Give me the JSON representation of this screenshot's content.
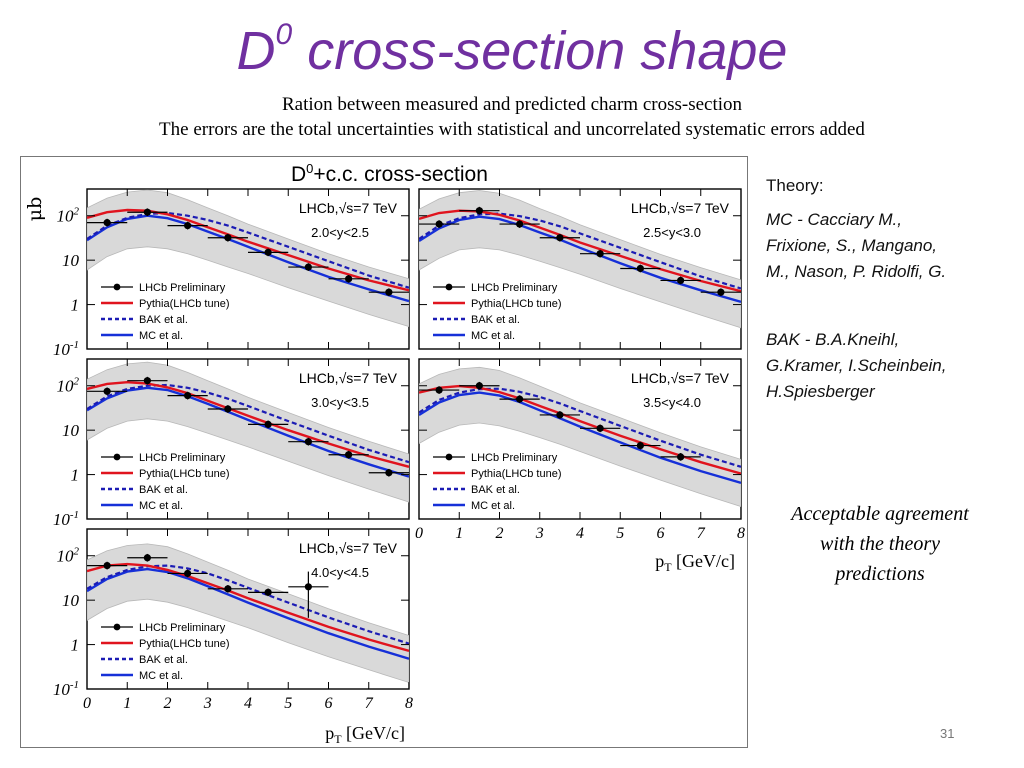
{
  "slide": {
    "title": "D",
    "title_sup": "0",
    "title_rest": " cross-section shape",
    "subtitle1": "Ration between measured and predicted charm cross-section",
    "subtitle2": "The errors are the total uncertainties with statistical and uncorrelated systematic errors added",
    "page_number": "31"
  },
  "theory": {
    "heading": "Theory:",
    "mc_lines": [
      "MC - Cacciary M.,",
      "Frixione, S., Mangano,",
      "M., Nason, P. Ridolfi, G."
    ],
    "bak_lines": [
      "BAK - B.A.Kneihl,",
      "G.Kramer, I.Scheinbein,",
      "H.Spiesberger"
    ],
    "conclusion_lines": [
      "Acceptable agreement",
      "with the theory",
      "predictions"
    ]
  },
  "colors": {
    "title": "#7030a0",
    "data": "#000000",
    "pythia": "#e0141e",
    "bak": "#1c1cb4",
    "mc": "#1630d8",
    "band": "#d9d9d9"
  },
  "chart_data": {
    "type": "line",
    "title": "D0+c.c. cross-section",
    "title_base": "D",
    "title_sup": "0",
    "title_rest": "+c.c. cross-section",
    "ylabel": "μb",
    "xlabel": "pT [GeV/c]",
    "xlabel_main": "p",
    "xlabel_sub": "T",
    "xlabel_rest": " [GeV/c]",
    "xlim": [
      0,
      8
    ],
    "ylim": [
      0.1,
      400
    ],
    "yscale": "log",
    "x_ticks": [
      "0",
      "1",
      "2",
      "3",
      "4",
      "5",
      "6",
      "7",
      "8"
    ],
    "y_ticks": [
      {
        "base": "10",
        "exp": "2",
        "value": 100
      },
      {
        "base": "10",
        "exp": "",
        "value": 10
      },
      {
        "base": "1",
        "exp": "",
        "value": 1
      },
      {
        "base": "10",
        "exp": "-1",
        "value": 0.1
      }
    ],
    "experiment_label": "LHCb,",
    "energy_label": "s=7 TeV",
    "legend_placement": "bottom-left",
    "legend": [
      "LHCb Preliminary",
      "Pythia(LHCb tune)",
      "BAK et al.",
      "MC et al."
    ],
    "panels": [
      {
        "rapidity": "2.0<y<2.5",
        "data": {
          "x": [
            0.5,
            1.5,
            2.5,
            3.5,
            4.5,
            5.5,
            6.5,
            7.5
          ],
          "y": [
            70,
            120,
            60,
            32,
            15,
            7,
            3.8,
            1.9
          ]
        },
        "pythia": {
          "x": [
            0,
            0.5,
            1,
            1.5,
            2,
            2.5,
            3,
            3.5,
            4,
            5,
            6,
            7,
            8
          ],
          "y": [
            90,
            120,
            135,
            130,
            108,
            80,
            55,
            38,
            26,
            13,
            6.5,
            3.5,
            2.1
          ]
        },
        "bak": {
          "x": [
            0,
            0.5,
            1,
            1.5,
            2,
            2.5,
            3,
            3.5,
            4,
            5,
            6,
            7,
            8
          ],
          "y": [
            30,
            60,
            90,
            110,
            115,
            100,
            80,
            60,
            42,
            20,
            9.5,
            4.5,
            2.4
          ]
        },
        "mc": {
          "x": [
            0,
            0.5,
            1,
            1.5,
            2,
            2.5,
            3,
            3.5,
            4,
            5,
            6,
            7,
            8
          ],
          "y": [
            28,
            55,
            85,
            100,
            88,
            65,
            44,
            30,
            20,
            9,
            4.2,
            2.2,
            1.2
          ]
        },
        "band_upper": {
          "x": [
            0,
            0.5,
            1,
            1.5,
            2,
            2.5,
            3,
            3.5,
            4,
            5,
            6,
            7,
            8
          ],
          "y": [
            150,
            250,
            340,
            380,
            330,
            230,
            150,
            100,
            65,
            30,
            14,
            7,
            3.8
          ]
        },
        "band_lower": {
          "x": [
            0,
            0.5,
            1,
            1.5,
            2,
            2.5,
            3,
            3.5,
            4,
            5,
            6,
            7,
            8
          ],
          "y": [
            6,
            12,
            18,
            20,
            18,
            14,
            10,
            7,
            5,
            2.4,
            1.2,
            0.6,
            0.32
          ]
        }
      },
      {
        "rapidity": "2.5<y<3.0",
        "data": {
          "x": [
            0.5,
            1.5,
            2.5,
            3.5,
            4.5,
            5.5,
            6.5,
            7.5
          ],
          "y": [
            65,
            130,
            65,
            32,
            14,
            6.5,
            3.5,
            1.9
          ]
        },
        "pythia": {
          "x": [
            0,
            0.5,
            1,
            1.5,
            2,
            2.5,
            3,
            3.5,
            4,
            5,
            6,
            7,
            8
          ],
          "y": [
            85,
            115,
            130,
            125,
            105,
            78,
            54,
            37,
            25,
            12.5,
            6.3,
            3.4,
            2.0
          ]
        },
        "bak": {
          "x": [
            0,
            0.5,
            1,
            1.5,
            2,
            2.5,
            3,
            3.5,
            4,
            5,
            6,
            7,
            8
          ],
          "y": [
            30,
            60,
            88,
            108,
            112,
            98,
            78,
            58,
            40,
            19,
            9,
            4.3,
            2.3
          ]
        },
        "mc": {
          "x": [
            0,
            0.5,
            1,
            1.5,
            2,
            2.5,
            3,
            3.5,
            4,
            5,
            6,
            7,
            8
          ],
          "y": [
            27,
            52,
            80,
            95,
            84,
            62,
            42,
            29,
            19,
            8.5,
            4.0,
            2.1,
            1.15
          ]
        },
        "band_upper": {
          "x": [
            0,
            0.5,
            1,
            1.5,
            2,
            2.5,
            3,
            3.5,
            4,
            5,
            6,
            7,
            8
          ],
          "y": [
            140,
            240,
            330,
            370,
            320,
            225,
            145,
            97,
            63,
            29,
            13.5,
            6.8,
            3.6
          ]
        },
        "band_lower": {
          "x": [
            0,
            0.5,
            1,
            1.5,
            2,
            2.5,
            3,
            3.5,
            4,
            5,
            6,
            7,
            8
          ],
          "y": [
            6,
            11,
            17,
            19,
            17,
            13,
            9.5,
            6.8,
            4.8,
            2.3,
            1.15,
            0.58,
            0.3
          ]
        }
      },
      {
        "rapidity": "3.0<y<3.5",
        "data": {
          "x": [
            0.5,
            1.5,
            2.5,
            3.5,
            4.5,
            5.5,
            6.5,
            7.5
          ],
          "y": [
            75,
            130,
            60,
            30,
            13.5,
            5.5,
            2.8,
            1.1
          ]
        },
        "pythia": {
          "x": [
            0,
            0.5,
            1,
            1.5,
            2,
            2.5,
            3,
            3.5,
            4,
            5,
            6,
            7,
            8
          ],
          "y": [
            85,
            110,
            120,
            112,
            92,
            68,
            46,
            31,
            21,
            10,
            5,
            2.6,
            1.5
          ]
        },
        "bak": {
          "x": [
            0,
            0.5,
            1,
            1.5,
            2,
            2.5,
            3,
            3.5,
            4,
            5,
            6,
            7,
            8
          ],
          "y": [
            30,
            58,
            85,
            100,
            104,
            90,
            70,
            51,
            35,
            16,
            7.5,
            3.6,
            1.9
          ]
        },
        "mc": {
          "x": [
            0,
            0.5,
            1,
            1.5,
            2,
            2.5,
            3,
            3.5,
            4,
            5,
            6,
            7,
            8
          ],
          "y": [
            28,
            52,
            78,
            90,
            80,
            58,
            39,
            26,
            17,
            7.5,
            3.4,
            1.7,
            0.9
          ]
        },
        "band_upper": {
          "x": [
            0,
            0.5,
            1,
            1.5,
            2,
            2.5,
            3,
            3.5,
            4,
            5,
            6,
            7,
            8
          ],
          "y": [
            140,
            230,
            310,
            340,
            290,
            200,
            130,
            85,
            55,
            25,
            11.5,
            5.6,
            2.9
          ]
        },
        "band_lower": {
          "x": [
            0,
            0.5,
            1,
            1.5,
            2,
            2.5,
            3,
            3.5,
            4,
            5,
            6,
            7,
            8
          ],
          "y": [
            6,
            11,
            16,
            18,
            16,
            12,
            8.5,
            6,
            4.2,
            2.0,
            0.95,
            0.47,
            0.24
          ]
        }
      },
      {
        "rapidity": "3.5<y<4.0",
        "data": {
          "x": [
            0.5,
            1.5,
            2.5,
            3.5,
            4.5,
            5.5,
            6.5
          ],
          "y": [
            80,
            100,
            50,
            22,
            11,
            4.5,
            2.5
          ]
        },
        "pythia": {
          "x": [
            0,
            0.5,
            1,
            1.5,
            2,
            2.5,
            3,
            3.5,
            4,
            5,
            6,
            7,
            8
          ],
          "y": [
            70,
            90,
            98,
            90,
            72,
            52,
            35,
            24,
            16,
            7.5,
            3.7,
            1.9,
            1.05
          ]
        },
        "bak": {
          "x": [
            0,
            0.5,
            1,
            1.5,
            2,
            2.5,
            3,
            3.5,
            4,
            5,
            6,
            7,
            8
          ],
          "y": [
            25,
            48,
            70,
            84,
            86,
            73,
            56,
            40,
            27,
            12.5,
            5.8,
            2.8,
            1.5
          ]
        },
        "mc": {
          "x": [
            0,
            0.5,
            1,
            1.5,
            2,
            2.5,
            3,
            3.5,
            4,
            5,
            6,
            7,
            8
          ],
          "y": [
            22,
            42,
            62,
            70,
            60,
            43,
            28,
            18.5,
            12,
            5.3,
            2.4,
            1.2,
            0.65
          ]
        },
        "band_upper": {
          "x": [
            0,
            0.5,
            1,
            1.5,
            2,
            2.5,
            3,
            3.5,
            4,
            5,
            6,
            7,
            8
          ],
          "y": [
            110,
            180,
            240,
            260,
            220,
            150,
            98,
            64,
            41,
            19,
            8.7,
            4.2,
            2.2
          ]
        },
        "band_lower": {
          "x": [
            0,
            0.5,
            1,
            1.5,
            2,
            2.5,
            3,
            3.5,
            4,
            5,
            6,
            7,
            8
          ],
          "y": [
            5,
            9,
            13,
            14.5,
            12.5,
            9.5,
            6.8,
            4.8,
            3.3,
            1.55,
            0.75,
            0.37,
            0.19
          ]
        }
      },
      {
        "rapidity": "4.0<y<4.5",
        "data": {
          "x": [
            0.5,
            1.5,
            2.5,
            3.5,
            4.5,
            5.5
          ],
          "y": [
            60,
            90,
            40,
            18,
            15,
            20
          ]
        },
        "pythia": {
          "x": [
            0,
            0.5,
            1,
            1.5,
            2,
            2.5,
            3,
            3.5,
            4,
            5,
            6,
            7,
            8
          ],
          "y": [
            45,
            60,
            65,
            60,
            48,
            35,
            24,
            16.5,
            11,
            5.2,
            2.5,
            1.3,
            0.72
          ]
        },
        "bak": {
          "x": [
            0,
            0.5,
            1,
            1.5,
            2,
            2.5,
            3,
            3.5,
            4,
            5,
            6,
            7,
            8
          ],
          "y": [
            18,
            33,
            48,
            58,
            60,
            52,
            40,
            28,
            19,
            8.8,
            4.1,
            2.0,
            1.05
          ]
        },
        "mc": {
          "x": [
            0,
            0.5,
            1,
            1.5,
            2,
            2.5,
            3,
            3.5,
            4,
            5,
            6,
            7,
            8
          ],
          "y": [
            16,
            30,
            44,
            50,
            43,
            31,
            20.5,
            13.5,
            8.8,
            3.9,
            1.8,
            0.9,
            0.48
          ]
        },
        "band_upper": {
          "x": [
            0,
            0.5,
            1,
            1.5,
            2,
            2.5,
            3,
            3.5,
            4,
            5,
            6,
            7,
            8
          ],
          "y": [
            80,
            130,
            170,
            185,
            160,
            110,
            72,
            47,
            30,
            14,
            6.4,
            3.1,
            1.6
          ]
        },
        "band_lower": {
          "x": [
            0,
            0.5,
            1,
            1.5,
            2,
            2.5,
            3,
            3.5,
            4,
            5,
            6,
            7,
            8
          ],
          "y": [
            3.5,
            6.5,
            9.5,
            10.5,
            9,
            6.8,
            4.8,
            3.4,
            2.4,
            1.1,
            0.53,
            0.27,
            0.14
          ]
        }
      }
    ]
  }
}
